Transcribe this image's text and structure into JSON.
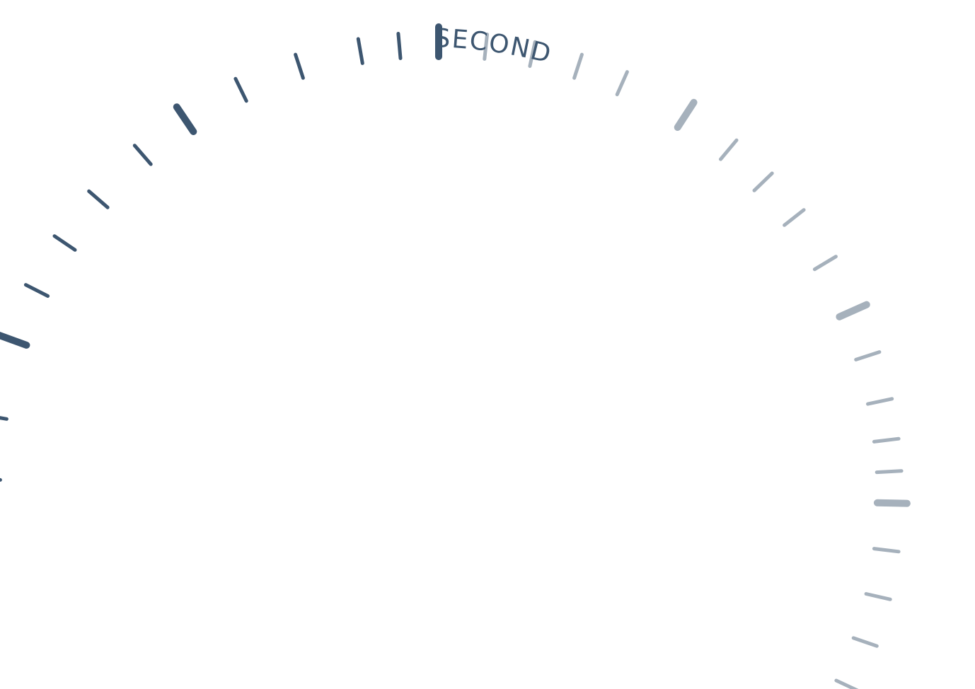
{
  "clock": {
    "label": "SECOND",
    "current_second": 0,
    "elapsed_color": "#3d5670",
    "remaining_color": "#a6b1bc"
  }
}
